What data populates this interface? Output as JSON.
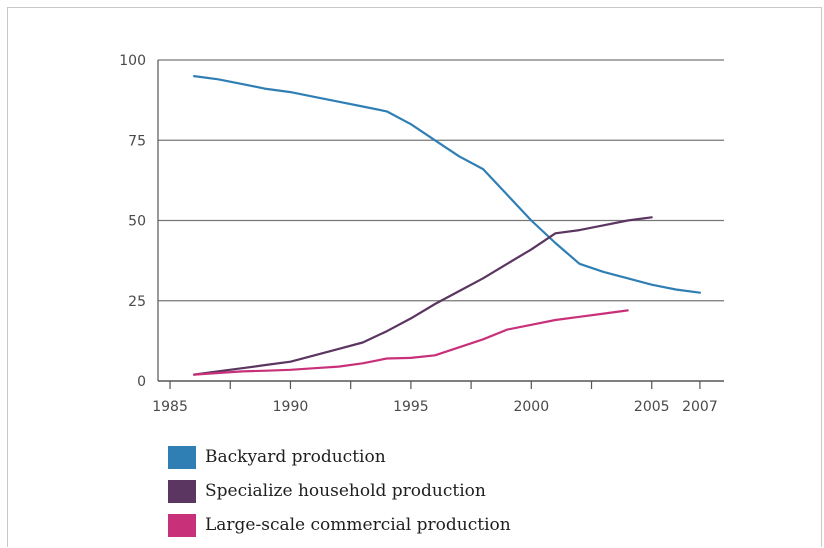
{
  "chart_data": {
    "type": "line",
    "title": "",
    "xlabel": "",
    "ylabel": "",
    "ylim": [
      0,
      100
    ],
    "yticks": [
      0,
      25,
      50,
      75,
      100
    ],
    "xticks": [
      1985,
      1990,
      1995,
      2000,
      2005,
      2007
    ],
    "grid": "horizontal",
    "legend_position": "bottom",
    "series": [
      {
        "name": "Backyard production",
        "color": "#2f7fb5",
        "points": [
          [
            1986,
            95
          ],
          [
            1987,
            94
          ],
          [
            1988,
            92.5
          ],
          [
            1989,
            91
          ],
          [
            1990,
            90
          ],
          [
            1991,
            88.5
          ],
          [
            1992,
            87
          ],
          [
            1993,
            85.5
          ],
          [
            1994,
            84
          ],
          [
            1995,
            80
          ],
          [
            1996,
            75
          ],
          [
            1997,
            70
          ],
          [
            1998,
            66
          ],
          [
            1999,
            58
          ],
          [
            2000,
            50
          ],
          [
            2001,
            43
          ],
          [
            2002,
            36.5
          ],
          [
            2003,
            34
          ],
          [
            2004,
            32
          ],
          [
            2005,
            30
          ],
          [
            2006,
            28.5
          ],
          [
            2007,
            27.5
          ]
        ]
      },
      {
        "name": "Specialize household production",
        "color": "#5a3660",
        "points": [
          [
            1986,
            2
          ],
          [
            1987,
            3
          ],
          [
            1988,
            4
          ],
          [
            1989,
            5
          ],
          [
            1990,
            6
          ],
          [
            1991,
            8
          ],
          [
            1992,
            10
          ],
          [
            1993,
            12
          ],
          [
            1994,
            15.5
          ],
          [
            1995,
            19.5
          ],
          [
            1996,
            24
          ],
          [
            1997,
            28
          ],
          [
            1998,
            32
          ],
          [
            1999,
            36.5
          ],
          [
            2000,
            41
          ],
          [
            2001,
            46
          ],
          [
            2002,
            47
          ],
          [
            2003,
            48.5
          ],
          [
            2004,
            50
          ],
          [
            2005,
            51
          ]
        ]
      },
      {
        "name": "Large-scale commercial production",
        "color": "#c8317a",
        "points": [
          [
            1986,
            2
          ],
          [
            1987,
            2.5
          ],
          [
            1988,
            3
          ],
          [
            1989,
            3.2
          ],
          [
            1990,
            3.5
          ],
          [
            1991,
            4
          ],
          [
            1992,
            4.5
          ],
          [
            1993,
            5.5
          ],
          [
            1994,
            7
          ],
          [
            1995,
            7.2
          ],
          [
            1996,
            8
          ],
          [
            1997,
            10.5
          ],
          [
            1998,
            13
          ],
          [
            1999,
            16
          ],
          [
            2000,
            17.5
          ],
          [
            2001,
            19
          ],
          [
            2002,
            20
          ],
          [
            2003,
            21
          ],
          [
            2004,
            22
          ]
        ]
      }
    ]
  }
}
